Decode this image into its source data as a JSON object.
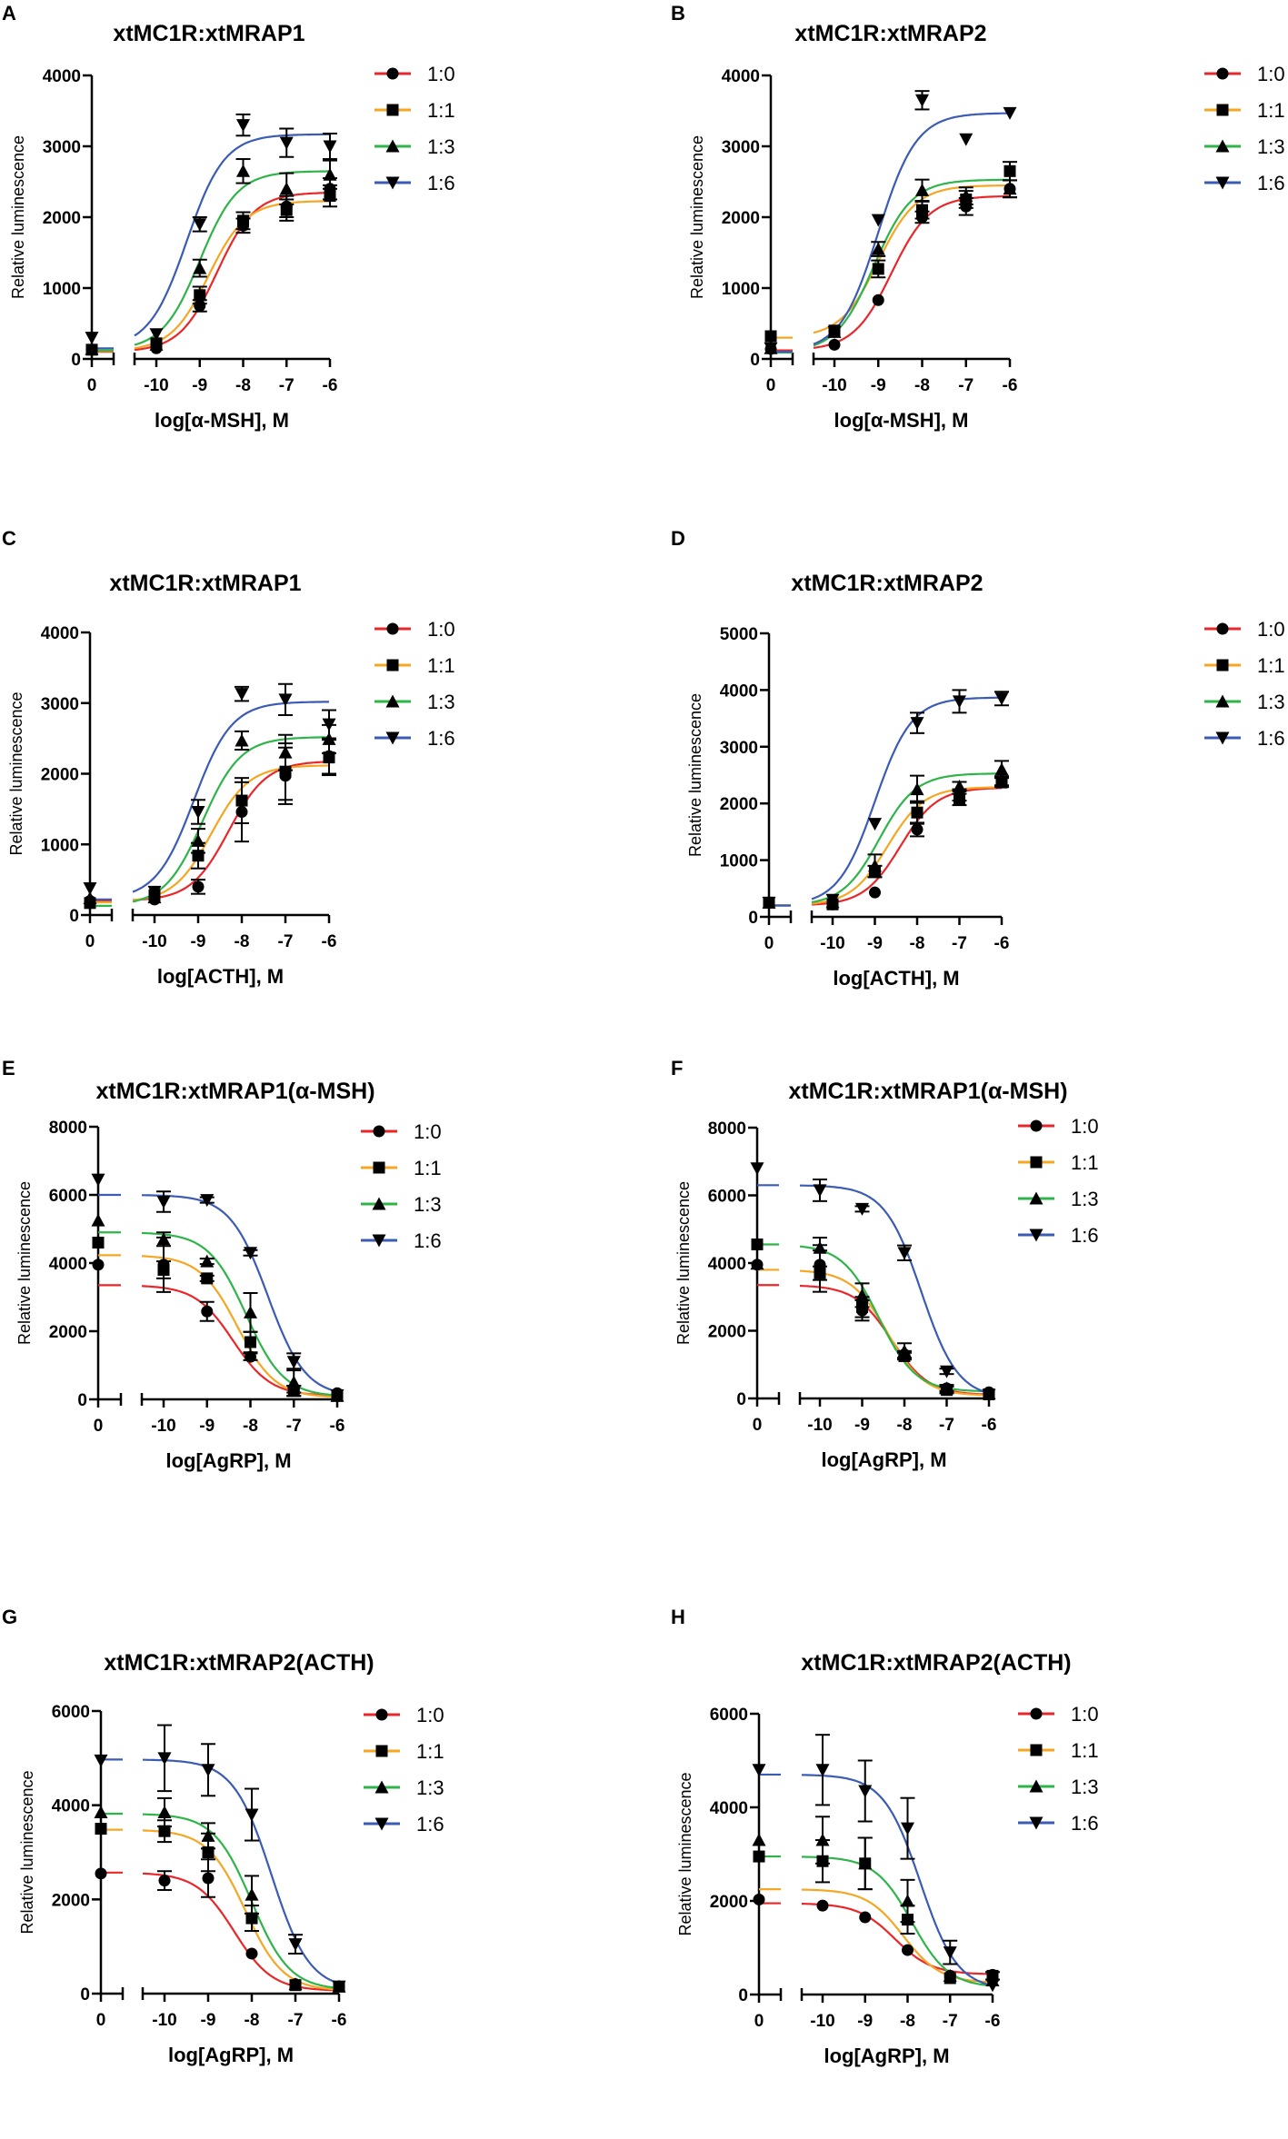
{
  "figure": {
    "colors": {
      "1:0": "#e8272a",
      "1:1": "#f5a623",
      "1:3": "#2fb44a",
      "1:6": "#3b5bb5",
      "marker": "#000000"
    }
  },
  "chart_data": [
    {
      "panel": "A",
      "type": "line",
      "title": "xtMC1R:xtMRAP1",
      "xlabel": "log[α-MSH], M",
      "ylabel": "Relative luminescence",
      "ylim": [
        0,
        4000
      ],
      "yticks": [
        0,
        1000,
        2000,
        3000,
        4000
      ],
      "xticks": [
        "0",
        "-10",
        "-9",
        "-8",
        "-7",
        "-6"
      ],
      "x": [
        -10,
        -9,
        -8,
        -7,
        -6
      ],
      "legend": "top-right",
      "series": [
        {
          "name": "1:0",
          "marker": "circle",
          "zero": 130,
          "values": [
            150,
            750,
            1880,
            2150,
            2400
          ],
          "err": [
            40,
            80,
            100,
            150,
            150
          ],
          "fit": {
            "bottom": 100,
            "top": 2350,
            "logec50": -8.6
          }
        },
        {
          "name": "1:1",
          "marker": "square",
          "zero": 130,
          "values": [
            220,
            900,
            1950,
            2100,
            2300
          ],
          "err": [
            40,
            120,
            120,
            150,
            150
          ],
          "fit": {
            "bottom": 110,
            "top": 2230,
            "logec50": -8.8
          }
        },
        {
          "name": "1:3",
          "marker": "triangle-up",
          "zero": 140,
          "values": [
            200,
            1280,
            2650,
            2400,
            2600
          ],
          "err": [
            40,
            120,
            170,
            220,
            200
          ],
          "fit": {
            "bottom": 120,
            "top": 2650,
            "logec50": -9.0
          }
        },
        {
          "name": "1:6",
          "marker": "triangle-down",
          "zero": 300,
          "values": [
            350,
            1900,
            3300,
            3050,
            3000
          ],
          "err": [
            40,
            100,
            150,
            200,
            180
          ],
          "fit": {
            "bottom": 150,
            "top": 3170,
            "logec50": -9.3
          }
        }
      ]
    },
    {
      "panel": "B",
      "type": "line",
      "title": "xtMC1R:xtMRAP2",
      "xlabel": "log[α-MSH], M",
      "ylabel": "Relative luminescence",
      "ylim": [
        0,
        4000
      ],
      "yticks": [
        0,
        1000,
        2000,
        3000,
        4000
      ],
      "xticks": [
        "0",
        "-10",
        "-9",
        "-8",
        "-7",
        "-6"
      ],
      "x": [
        -10,
        -9,
        -8,
        -7,
        -6
      ],
      "legend": "top-right",
      "series": [
        {
          "name": "1:0",
          "marker": "circle",
          "zero": 140,
          "values": [
            200,
            830,
            2000,
            2150,
            2400
          ],
          "err": [
            20,
            40,
            80,
            120,
            120
          ],
          "fit": {
            "bottom": 120,
            "top": 2300,
            "logec50": -8.7
          }
        },
        {
          "name": "1:1",
          "marker": "square",
          "zero": 320,
          "values": [
            400,
            1270,
            2100,
            2250,
            2650
          ],
          "err": [
            30,
            120,
            120,
            120,
            130
          ],
          "fit": {
            "bottom": 300,
            "top": 2450,
            "logec50": -9.0
          }
        },
        {
          "name": "1:3",
          "marker": "triangle-up",
          "zero": 150,
          "values": [
            380,
            1550,
            2380,
            2300,
            2400
          ],
          "err": [
            30,
            100,
            150,
            120,
            120
          ],
          "fit": {
            "bottom": 90,
            "top": 2530,
            "logec50": -9.1
          }
        },
        {
          "name": "1:6",
          "marker": "triangle-down",
          "zero": 150,
          "values": [
            380,
            1960,
            3650,
            3100,
            3470
          ],
          "err": [
            20,
            40,
            130,
            40,
            40
          ],
          "fit": {
            "bottom": 100,
            "top": 3470,
            "logec50": -9.0
          }
        }
      ]
    },
    {
      "panel": "C",
      "type": "line",
      "title": "xtMC1R:xtMRAP1",
      "xlabel": "log[ACTH], M",
      "ylabel": "Relative luminescence",
      "ylim": [
        0,
        4000
      ],
      "yticks": [
        0,
        1000,
        2000,
        3000,
        4000
      ],
      "xticks": [
        "0",
        "-10",
        "-9",
        "-8",
        "-7",
        "-6"
      ],
      "x": [
        -10,
        -9,
        -8,
        -7,
        -6
      ],
      "legend": "top-right",
      "series": [
        {
          "name": "1:0",
          "marker": "circle",
          "zero": 200,
          "values": [
            220,
            400,
            1460,
            1970,
            2250
          ],
          "err": [
            50,
            100,
            420,
            400,
            250
          ],
          "fit": {
            "bottom": 200,
            "top": 2180,
            "logec50": -8.3
          }
        },
        {
          "name": "1:1",
          "marker": "square",
          "zero": 170,
          "values": [
            280,
            840,
            1620,
            2030,
            2230
          ],
          "err": [
            50,
            180,
            320,
            400,
            250
          ],
          "fit": {
            "bottom": 180,
            "top": 2120,
            "logec50": -8.7
          }
        },
        {
          "name": "1:3",
          "marker": "triangle-up",
          "zero": 240,
          "values": [
            250,
            1050,
            2470,
            2300,
            2490
          ],
          "err": [
            60,
            170,
            130,
            250,
            200
          ],
          "fit": {
            "bottom": 130,
            "top": 2520,
            "logec50": -8.9
          }
        },
        {
          "name": "1:6",
          "marker": "triangle-down",
          "zero": 380,
          "values": [
            330,
            1460,
            3130,
            3050,
            2700
          ],
          "err": [
            60,
            170,
            100,
            220,
            200
          ],
          "fit": {
            "bottom": 220,
            "top": 3020,
            "logec50": -9.1
          }
        }
      ]
    },
    {
      "panel": "D",
      "type": "line",
      "title": "xtMC1R:xtMRAP2",
      "xlabel": "log[ACTH], M",
      "ylabel": "Relative luminescence",
      "ylim": [
        0,
        5000
      ],
      "yticks": [
        0,
        1000,
        2000,
        3000,
        4000,
        5000
      ],
      "xticks": [
        "0",
        "-10",
        "-9",
        "-8",
        "-7",
        "-6"
      ],
      "x": [
        -10,
        -9,
        -8,
        -7,
        -6
      ],
      "legend": "top-right",
      "series": [
        {
          "name": "1:0",
          "marker": "circle",
          "zero": 250,
          "values": [
            220,
            430,
            1540,
            2150,
            2400
          ],
          "err": [
            30,
            40,
            120,
            100,
            80
          ],
          "fit": {
            "bottom": 200,
            "top": 2280,
            "logec50": -8.4
          }
        },
        {
          "name": "1:1",
          "marker": "square",
          "zero": 250,
          "values": [
            220,
            800,
            1840,
            2070,
            2370
          ],
          "err": [
            30,
            100,
            200,
            100,
            80
          ],
          "fit": {
            "bottom": 200,
            "top": 2290,
            "logec50": -8.7
          }
        },
        {
          "name": "1:3",
          "marker": "triangle-up",
          "zero": 250,
          "values": [
            260,
            900,
            2250,
            2300,
            2600
          ],
          "err": [
            30,
            200,
            240,
            80,
            150
          ],
          "fit": {
            "bottom": 200,
            "top": 2530,
            "logec50": -8.9
          }
        },
        {
          "name": "1:6",
          "marker": "triangle-down",
          "zero": 250,
          "values": [
            300,
            1640,
            3420,
            3800,
            3850
          ],
          "err": [
            30,
            40,
            180,
            200,
            120
          ],
          "fit": {
            "bottom": 200,
            "top": 3870,
            "logec50": -9.0
          }
        }
      ]
    },
    {
      "panel": "E",
      "type": "line",
      "title": "xtMC1R:xtMRAP1(α-MSH)",
      "xlabel": "log[AgRP], M",
      "ylabel": "Relative luminescence",
      "ylim": [
        0,
        8000
      ],
      "yticks": [
        0,
        2000,
        4000,
        6000,
        8000
      ],
      "xticks": [
        "0",
        "-10",
        "-9",
        "-8",
        "-7",
        "-6"
      ],
      "x": [
        -10,
        -9,
        -8,
        -7,
        -6
      ],
      "legend": "top-right",
      "series": [
        {
          "name": "1:0",
          "marker": "circle",
          "zero": 3950,
          "values": [
            3950,
            2580,
            1250,
            300,
            180
          ],
          "err": [
            800,
            280,
            100,
            100,
            50
          ],
          "fit": {
            "bottom": 100,
            "top": 3350,
            "logec50": -8.4
          }
        },
        {
          "name": "1:1",
          "marker": "square",
          "zero": 4600,
          "values": [
            3800,
            3550,
            1680,
            250,
            100
          ],
          "err": [
            250,
            80,
            300,
            150,
            50
          ],
          "fit": {
            "bottom": 50,
            "top": 4230,
            "logec50": -8.3
          }
        },
        {
          "name": "1:3",
          "marker": "triangle-up",
          "zero": 5250,
          "values": [
            4700,
            4050,
            2550,
            500,
            100
          ],
          "err": [
            200,
            80,
            570,
            400,
            50
          ],
          "fit": {
            "bottom": 80,
            "top": 4900,
            "logec50": -8.1
          }
        },
        {
          "name": "1:6",
          "marker": "triangle-down",
          "zero": 6450,
          "values": [
            5800,
            5850,
            4300,
            1100,
            120
          ],
          "err": [
            300,
            80,
            80,
            250,
            50
          ],
          "fit": {
            "bottom": 80,
            "top": 6000,
            "logec50": -7.6
          }
        }
      ]
    },
    {
      "panel": "F",
      "type": "line",
      "title": "xtMC1R:xtMRAP1(α-MSH)",
      "xlabel": "log[AgRP], M",
      "ylabel": "Relative luminescence",
      "ylim": [
        0,
        8000
      ],
      "yticks": [
        0,
        2000,
        4000,
        6000,
        8000
      ],
      "xticks": [
        "0",
        "-10",
        "-9",
        "-8",
        "-7",
        "-6"
      ],
      "x": [
        -10,
        -9,
        -8,
        -7,
        -6
      ],
      "legend": "top-right",
      "series": [
        {
          "name": "1:0",
          "marker": "circle",
          "zero": 3950,
          "values": [
            3950,
            2600,
            1300,
            300,
            180
          ],
          "err": [
            800,
            300,
            100,
            100,
            50
          ],
          "fit": {
            "bottom": 100,
            "top": 3350,
            "logec50": -8.3
          }
        },
        {
          "name": "1:1",
          "marker": "square",
          "zero": 4550,
          "values": [
            3700,
            2700,
            1250,
            250,
            120
          ],
          "err": [
            200,
            300,
            100,
            100,
            50
          ],
          "fit": {
            "bottom": 80,
            "top": 3800,
            "logec50": -8.4
          }
        },
        {
          "name": "1:3",
          "marker": "triangle-up",
          "zero": 3980,
          "values": [
            4450,
            3050,
            1400,
            300,
            150
          ],
          "err": [
            80,
            350,
            230,
            80,
            50
          ],
          "fit": {
            "bottom": 200,
            "top": 4550,
            "logec50": -8.6
          }
        },
        {
          "name": "1:6",
          "marker": "triangle-down",
          "zero": 6800,
          "values": [
            6150,
            5600,
            4300,
            800,
            100
          ],
          "err": [
            320,
            80,
            220,
            80,
            50
          ],
          "fit": {
            "bottom": 0,
            "top": 6300,
            "logec50": -7.6
          }
        }
      ]
    },
    {
      "panel": "G",
      "type": "line",
      "title": "xtMC1R:xtMRAP2(ACTH)",
      "xlabel": "log[AgRP], M",
      "ylabel": "Relative luminescence",
      "ylim": [
        0,
        6000
      ],
      "yticks": [
        0,
        2000,
        4000,
        6000
      ],
      "xticks": [
        "0",
        "-10",
        "-9",
        "-8",
        "-7",
        "-6"
      ],
      "x": [
        -10,
        -9,
        -8,
        -7,
        -6
      ],
      "legend": "top-right",
      "series": [
        {
          "name": "1:0",
          "marker": "circle",
          "zero": 2550,
          "values": [
            2400,
            2450,
            850,
            200,
            150
          ],
          "err": [
            200,
            400,
            50,
            50,
            50
          ],
          "fit": {
            "bottom": 60,
            "top": 2570,
            "logec50": -8.4
          }
        },
        {
          "name": "1:1",
          "marker": "square",
          "zero": 3500,
          "values": [
            3450,
            3000,
            1600,
            180,
            150
          ],
          "err": [
            230,
            400,
            270,
            50,
            50
          ],
          "fit": {
            "bottom": 60,
            "top": 3480,
            "logec50": -8.15
          }
        },
        {
          "name": "1:3",
          "marker": "triangle-up",
          "zero": 3850,
          "values": [
            3850,
            3350,
            2100,
            200,
            150
          ],
          "err": [
            300,
            270,
            400,
            50,
            50
          ],
          "fit": {
            "bottom": 80,
            "top": 3820,
            "logec50": -8.0
          }
        },
        {
          "name": "1:6",
          "marker": "triangle-down",
          "zero": 4950,
          "values": [
            5000,
            4750,
            3800,
            1050,
            150
          ],
          "err": [
            700,
            550,
            550,
            200,
            50
          ],
          "fit": {
            "bottom": 80,
            "top": 4970,
            "logec50": -7.55
          }
        }
      ]
    },
    {
      "panel": "H",
      "type": "line",
      "title": "xtMC1R:xtMRAP2(ACTH)",
      "xlabel": "log[AgRP], M",
      "ylabel": "Relative luminescence",
      "ylim": [
        0,
        6000
      ],
      "yticks": [
        0,
        2000,
        4000,
        6000
      ],
      "xticks": [
        "0",
        "-10",
        "-9",
        "-8",
        "-7",
        "-6"
      ],
      "x": [
        -10,
        -9,
        -8,
        -7,
        -6
      ],
      "legend": "top-right",
      "series": [
        {
          "name": "1:0",
          "marker": "circle",
          "zero": 2030,
          "values": [
            1900,
            1650,
            950,
            400,
            420
          ],
          "err": [
            40,
            40,
            40,
            40,
            40
          ],
          "fit": {
            "bottom": 430,
            "top": 1950,
            "logec50": -8.3
          }
        },
        {
          "name": "1:1",
          "marker": "square",
          "zero": 2950,
          "values": [
            2850,
            2800,
            1600,
            350,
            400
          ],
          "err": [
            450,
            550,
            300,
            60,
            80
          ],
          "fit": {
            "bottom": 250,
            "top": 2250,
            "logec50": -8.1
          }
        },
        {
          "name": "1:3",
          "marker": "triangle-up",
          "zero": 3300,
          "values": [
            3300,
            2800,
            2000,
            400,
            300
          ],
          "err": [
            500,
            550,
            450,
            60,
            60
          ],
          "fit": {
            "bottom": 150,
            "top": 2950,
            "logec50": -7.9
          }
        },
        {
          "name": "1:6",
          "marker": "triangle-down",
          "zero": 4800,
          "values": [
            4800,
            4350,
            3550,
            900,
            200
          ],
          "err": [
            750,
            650,
            650,
            250,
            60
          ],
          "fit": {
            "bottom": 100,
            "top": 4700,
            "logec50": -7.7
          }
        }
      ]
    }
  ]
}
